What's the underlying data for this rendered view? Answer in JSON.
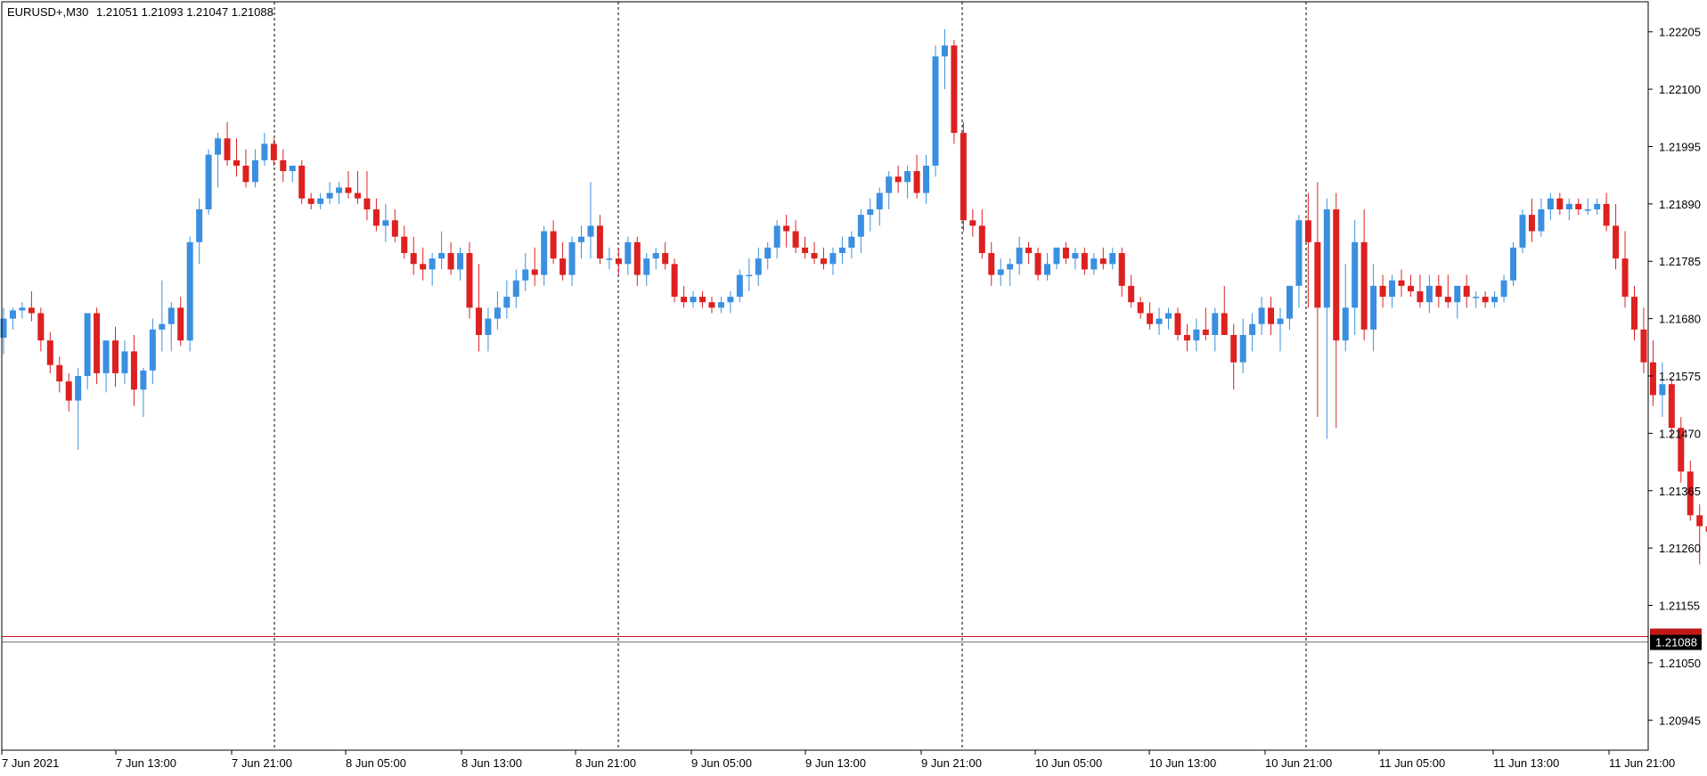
{
  "header": {
    "symbol": "EURUSD+,M30",
    "ohlc": "1.21051 1.21093 1.21047 1.21088"
  },
  "colors": {
    "bull": "#3a8fe0",
    "bear": "#dd2020",
    "grid": "#000000",
    "background": "#ffffff",
    "bid_line": "#707070",
    "ask_line": "#c01818",
    "price_label_bg": "#000000",
    "ask_label_bg": "#c01818"
  },
  "chart_data": {
    "type": "candlestick",
    "symbol": "EURUSD+",
    "timeframe": "M30",
    "ylim": [
      1.2089,
      1.2226
    ],
    "y_ticks": [
      "1.22205",
      "1.22100",
      "1.21995",
      "1.21890",
      "1.21785",
      "1.21680",
      "1.21575",
      "1.21470",
      "1.21365",
      "1.21260",
      "1.21155",
      "1.21050",
      "1.20945"
    ],
    "x_ticks": [
      "7 Jun 2021",
      "7 Jun 13:00",
      "7 Jun 21:00",
      "8 Jun 05:00",
      "8 Jun 13:00",
      "8 Jun 21:00",
      "9 Jun 05:00",
      "9 Jun 13:00",
      "9 Jun 21:00",
      "10 Jun 05:00",
      "10 Jun 13:00",
      "10 Jun 21:00",
      "11 Jun 05:00",
      "11 Jun 13:00",
      "11 Jun 21:00"
    ],
    "day_separators": [
      "7 Jun 21:00",
      "8 Jun 21:00",
      "9 Jun 21:00",
      "10 Jun 21:00"
    ],
    "current_price": "1.21088",
    "ask_price": 1.21098,
    "grid": false,
    "candles": [
      [
        1.21645,
        1.217,
        1.21615,
        1.2168
      ],
      [
        1.2168,
        1.217,
        1.2166,
        1.21695
      ],
      [
        1.21695,
        1.2171,
        1.2168,
        1.217
      ],
      [
        1.217,
        1.2173,
        1.21675,
        1.2169
      ],
      [
        1.2169,
        1.217,
        1.2162,
        1.2164
      ],
      [
        1.2164,
        1.21655,
        1.2158,
        1.21595
      ],
      [
        1.21595,
        1.2161,
        1.21545,
        1.21565
      ],
      [
        1.21565,
        1.2158,
        1.2151,
        1.2153
      ],
      [
        1.2153,
        1.2159,
        1.2144,
        1.21575
      ],
      [
        1.21575,
        1.2169,
        1.2155,
        1.2169
      ],
      [
        1.2169,
        1.217,
        1.2156,
        1.2158
      ],
      [
        1.2158,
        1.2164,
        1.21545,
        1.2164
      ],
      [
        1.2164,
        1.21665,
        1.21555,
        1.2158
      ],
      [
        1.2158,
        1.2164,
        1.2156,
        1.2162
      ],
      [
        1.2162,
        1.2165,
        1.2152,
        1.2155
      ],
      [
        1.2155,
        1.2159,
        1.215,
        1.21585
      ],
      [
        1.21585,
        1.2168,
        1.2156,
        1.2166
      ],
      [
        1.2166,
        1.2175,
        1.2162,
        1.2167
      ],
      [
        1.2167,
        1.2171,
        1.2162,
        1.217
      ],
      [
        1.217,
        1.2172,
        1.2163,
        1.2164
      ],
      [
        1.2164,
        1.2183,
        1.2162,
        1.2182
      ],
      [
        1.2182,
        1.219,
        1.2178,
        1.2188
      ],
      [
        1.2188,
        1.2199,
        1.2187,
        1.2198
      ],
      [
        1.2198,
        1.2202,
        1.2192,
        1.2201
      ],
      [
        1.2201,
        1.2204,
        1.2196,
        1.2197
      ],
      [
        1.2197,
        1.2201,
        1.2194,
        1.2196
      ],
      [
        1.2196,
        1.2199,
        1.2192,
        1.2193
      ],
      [
        1.2193,
        1.2199,
        1.2192,
        1.2197
      ],
      [
        1.2197,
        1.2202,
        1.2196,
        1.22
      ],
      [
        1.22,
        1.2201,
        1.2196,
        1.2197
      ],
      [
        1.2197,
        1.2199,
        1.2193,
        1.2195
      ],
      [
        1.2195,
        1.2196,
        1.2193,
        1.2196
      ],
      [
        1.2196,
        1.2197,
        1.2189,
        1.219
      ],
      [
        1.219,
        1.2191,
        1.2188,
        1.2189
      ],
      [
        1.2189,
        1.2191,
        1.2188,
        1.219
      ],
      [
        1.219,
        1.2193,
        1.2189,
        1.2191
      ],
      [
        1.2191,
        1.2193,
        1.2189,
        1.2192
      ],
      [
        1.2192,
        1.2195,
        1.219,
        1.2191
      ],
      [
        1.2191,
        1.2195,
        1.2189,
        1.219
      ],
      [
        1.219,
        1.2195,
        1.2186,
        1.2188
      ],
      [
        1.2188,
        1.219,
        1.2184,
        1.2185
      ],
      [
        1.2185,
        1.2189,
        1.2182,
        1.2186
      ],
      [
        1.2186,
        1.2188,
        1.2182,
        1.2183
      ],
      [
        1.2183,
        1.2185,
        1.2179,
        1.218
      ],
      [
        1.218,
        1.2183,
        1.2176,
        1.2178
      ],
      [
        1.2178,
        1.2181,
        1.2175,
        1.2177
      ],
      [
        1.2177,
        1.218,
        1.2174,
        1.2179
      ],
      [
        1.2179,
        1.2184,
        1.2177,
        1.218
      ],
      [
        1.218,
        1.2182,
        1.2176,
        1.2177
      ],
      [
        1.2177,
        1.2181,
        1.2175,
        1.218
      ],
      [
        1.218,
        1.2182,
        1.2168,
        1.217
      ],
      [
        1.217,
        1.2178,
        1.2162,
        1.2165
      ],
      [
        1.2165,
        1.217,
        1.2162,
        1.2168
      ],
      [
        1.2168,
        1.2173,
        1.2166,
        1.217
      ],
      [
        1.217,
        1.2175,
        1.2168,
        1.2172
      ],
      [
        1.2172,
        1.2177,
        1.217,
        1.2175
      ],
      [
        1.2175,
        1.218,
        1.2173,
        1.2177
      ],
      [
        1.2177,
        1.2181,
        1.2174,
        1.2176
      ],
      [
        1.2176,
        1.2185,
        1.2174,
        1.2184
      ],
      [
        1.2184,
        1.2186,
        1.2178,
        1.2179
      ],
      [
        1.2179,
        1.2182,
        1.2175,
        1.2176
      ],
      [
        1.2176,
        1.2183,
        1.2174,
        1.2182
      ],
      [
        1.2182,
        1.2185,
        1.2179,
        1.2183
      ],
      [
        1.2183,
        1.2193,
        1.2179,
        1.2185
      ],
      [
        1.2185,
        1.2187,
        1.2178,
        1.2179
      ],
      [
        1.2179,
        1.2181,
        1.2177,
        1.2179
      ],
      [
        1.2179,
        1.2181,
        1.2176,
        1.2178
      ],
      [
        1.2178,
        1.2183,
        1.2176,
        1.2182
      ],
      [
        1.2182,
        1.2183,
        1.2174,
        1.2176
      ],
      [
        1.2176,
        1.218,
        1.2174,
        1.2179
      ],
      [
        1.2179,
        1.2181,
        1.2177,
        1.218
      ],
      [
        1.218,
        1.2182,
        1.2177,
        1.2178
      ],
      [
        1.2178,
        1.2179,
        1.2171,
        1.2172
      ],
      [
        1.2172,
        1.2174,
        1.217,
        1.2171
      ],
      [
        1.2171,
        1.2173,
        1.217,
        1.2172
      ],
      [
        1.2172,
        1.2173,
        1.217,
        1.2171
      ],
      [
        1.2171,
        1.2172,
        1.2169,
        1.217
      ],
      [
        1.217,
        1.2172,
        1.2169,
        1.2171
      ],
      [
        1.2171,
        1.2173,
        1.2169,
        1.2172
      ],
      [
        1.2172,
        1.2177,
        1.2171,
        1.2176
      ],
      [
        1.2176,
        1.2179,
        1.2173,
        1.2176
      ],
      [
        1.2176,
        1.2181,
        1.2174,
        1.2179
      ],
      [
        1.2179,
        1.2182,
        1.2177,
        1.2181
      ],
      [
        1.2181,
        1.2186,
        1.2179,
        1.2185
      ],
      [
        1.2185,
        1.2187,
        1.2181,
        1.2184
      ],
      [
        1.2184,
        1.2186,
        1.218,
        1.2181
      ],
      [
        1.2181,
        1.2183,
        1.2179,
        1.218
      ],
      [
        1.218,
        1.2182,
        1.2178,
        1.2179
      ],
      [
        1.2179,
        1.2181,
        1.2177,
        1.2178
      ],
      [
        1.2178,
        1.2181,
        1.2176,
        1.218
      ],
      [
        1.218,
        1.2183,
        1.2178,
        1.2181
      ],
      [
        1.2181,
        1.2184,
        1.2179,
        1.2183
      ],
      [
        1.2183,
        1.2188,
        1.218,
        1.2187
      ],
      [
        1.2187,
        1.219,
        1.2184,
        1.2188
      ],
      [
        1.2188,
        1.2192,
        1.2185,
        1.2191
      ],
      [
        1.2191,
        1.2195,
        1.2188,
        1.2194
      ],
      [
        1.2194,
        1.2196,
        1.2191,
        1.2193
      ],
      [
        1.2193,
        1.2196,
        1.219,
        1.2195
      ],
      [
        1.2195,
        1.2198,
        1.219,
        1.2191
      ],
      [
        1.2191,
        1.2198,
        1.2189,
        1.2196
      ],
      [
        1.2196,
        1.2218,
        1.2194,
        1.2216
      ],
      [
        1.2216,
        1.2221,
        1.221,
        1.2218
      ],
      [
        1.2218,
        1.2219,
        1.22,
        1.2202
      ],
      [
        1.2202,
        1.2204,
        1.2184,
        1.2186
      ],
      [
        1.2186,
        1.2188,
        1.2183,
        1.2185
      ],
      [
        1.2185,
        1.2188,
        1.2179,
        1.218
      ],
      [
        1.218,
        1.2182,
        1.2174,
        1.2176
      ],
      [
        1.2176,
        1.2179,
        1.2174,
        1.2177
      ],
      [
        1.2177,
        1.2179,
        1.2174,
        1.2178
      ],
      [
        1.2178,
        1.2183,
        1.2176,
        1.2181
      ],
      [
        1.2181,
        1.2182,
        1.2178,
        1.218
      ],
      [
        1.218,
        1.2181,
        1.2175,
        1.2176
      ],
      [
        1.2176,
        1.218,
        1.2175,
        1.2178
      ],
      [
        1.2178,
        1.2181,
        1.2177,
        1.2181
      ],
      [
        1.2181,
        1.2182,
        1.2178,
        1.2179
      ],
      [
        1.2179,
        1.2181,
        1.2177,
        1.218
      ],
      [
        1.218,
        1.2181,
        1.2176,
        1.2177
      ],
      [
        1.2177,
        1.218,
        1.2176,
        1.2179
      ],
      [
        1.2179,
        1.2181,
        1.2177,
        1.2178
      ],
      [
        1.2178,
        1.2181,
        1.2177,
        1.218
      ],
      [
        1.218,
        1.2181,
        1.2172,
        1.2174
      ],
      [
        1.2174,
        1.2176,
        1.217,
        1.2171
      ],
      [
        1.2171,
        1.2172,
        1.2168,
        1.2169
      ],
      [
        1.2169,
        1.2171,
        1.2166,
        1.2167
      ],
      [
        1.2167,
        1.217,
        1.2165,
        1.2168
      ],
      [
        1.2168,
        1.217,
        1.2166,
        1.2169
      ],
      [
        1.2169,
        1.217,
        1.2164,
        1.2165
      ],
      [
        1.2165,
        1.2167,
        1.2162,
        1.2164
      ],
      [
        1.2164,
        1.2168,
        1.2162,
        1.2166
      ],
      [
        1.2166,
        1.217,
        1.2164,
        1.2165
      ],
      [
        1.2165,
        1.217,
        1.2162,
        1.2169
      ],
      [
        1.2169,
        1.2174,
        1.2165,
        1.2165
      ],
      [
        1.2165,
        1.2167,
        1.2155,
        1.216
      ],
      [
        1.216,
        1.2168,
        1.2158,
        1.2165
      ],
      [
        1.2165,
        1.2169,
        1.2162,
        1.2167
      ],
      [
        1.2167,
        1.2172,
        1.2165,
        1.217
      ],
      [
        1.217,
        1.2172,
        1.2165,
        1.2167
      ],
      [
        1.2167,
        1.217,
        1.2162,
        1.2168
      ],
      [
        1.2168,
        1.2174,
        1.2166,
        1.2174
      ],
      [
        1.2174,
        1.2187,
        1.217,
        1.2186
      ],
      [
        1.2186,
        1.2191,
        1.217,
        1.2182
      ],
      [
        1.2182,
        1.2193,
        1.215,
        1.217
      ],
      [
        1.217,
        1.219,
        1.2146,
        1.2188
      ],
      [
        1.2188,
        1.2191,
        1.2148,
        1.2164
      ],
      [
        1.2164,
        1.2178,
        1.2162,
        1.217
      ],
      [
        1.217,
        1.2186,
        1.2165,
        1.2182
      ],
      [
        1.2182,
        1.2188,
        1.2164,
        1.2166
      ],
      [
        1.2166,
        1.2178,
        1.2162,
        1.2174
      ],
      [
        1.2174,
        1.2176,
        1.217,
        1.2172
      ],
      [
        1.2172,
        1.2176,
        1.217,
        1.2175
      ],
      [
        1.2175,
        1.2177,
        1.2172,
        1.2174
      ],
      [
        1.2174,
        1.2176,
        1.2172,
        1.2173
      ],
      [
        1.2173,
        1.2176,
        1.217,
        1.2171
      ],
      [
        1.2171,
        1.2176,
        1.2169,
        1.2174
      ],
      [
        1.2174,
        1.2176,
        1.217,
        1.2172
      ],
      [
        1.2172,
        1.2176,
        1.217,
        1.2171
      ],
      [
        1.2171,
        1.2173,
        1.2168,
        1.2174
      ],
      [
        1.2174,
        1.2176,
        1.217,
        1.2172
      ],
      [
        1.2172,
        1.2173,
        1.217,
        1.2172
      ],
      [
        1.2172,
        1.2173,
        1.217,
        1.2171
      ],
      [
        1.2171,
        1.2173,
        1.217,
        1.2172
      ],
      [
        1.2172,
        1.2176,
        1.2171,
        1.2175
      ],
      [
        1.2175,
        1.2182,
        1.2174,
        1.2181
      ],
      [
        1.2181,
        1.2188,
        1.218,
        1.2187
      ],
      [
        1.2187,
        1.219,
        1.2182,
        1.2184
      ],
      [
        1.2184,
        1.219,
        1.2183,
        1.2188
      ],
      [
        1.2188,
        1.2191,
        1.2186,
        1.219
      ],
      [
        1.219,
        1.2191,
        1.2187,
        1.2188
      ],
      [
        1.2188,
        1.219,
        1.2186,
        1.2189
      ],
      [
        1.2189,
        1.219,
        1.2187,
        1.2188
      ],
      [
        1.2188,
        1.219,
        1.2187,
        1.2188
      ],
      [
        1.2188,
        1.219,
        1.2187,
        1.2189
      ],
      [
        1.2189,
        1.2191,
        1.2184,
        1.2185
      ],
      [
        1.2185,
        1.2189,
        1.2177,
        1.2179
      ],
      [
        1.2179,
        1.2184,
        1.217,
        1.2172
      ],
      [
        1.2172,
        1.2174,
        1.2164,
        1.2166
      ],
      [
        1.2166,
        1.217,
        1.2158,
        1.216
      ],
      [
        1.216,
        1.2164,
        1.2152,
        1.2154
      ],
      [
        1.2154,
        1.216,
        1.215,
        1.2156
      ],
      [
        1.2156,
        1.2157,
        1.2146,
        1.2148
      ],
      [
        1.2148,
        1.215,
        1.2138,
        1.214
      ],
      [
        1.214,
        1.2142,
        1.2131,
        1.2132
      ],
      [
        1.2132,
        1.2134,
        1.2123,
        1.213
      ],
      [
        1.213,
        1.2133,
        1.2126,
        1.2129
      ],
      [
        1.2129,
        1.2132,
        1.212,
        1.2121
      ],
      [
        1.2121,
        1.2126,
        1.211,
        1.2112
      ],
      [
        1.2112,
        1.2115,
        1.2104,
        1.2107
      ],
      [
        1.2107,
        1.2112,
        1.2093,
        1.2104
      ],
      [
        1.2104,
        1.2107,
        1.2097,
        1.2098
      ],
      [
        1.2098,
        1.2101,
        1.2096,
        1.2098
      ],
      [
        1.2098,
        1.2099,
        1.2093,
        1.2096
      ],
      [
        1.2096,
        1.2098,
        1.2093,
        1.2095
      ],
      [
        1.2095,
        1.2098,
        1.2092,
        1.2097
      ],
      [
        1.2097,
        1.2101,
        1.2096,
        1.21
      ],
      [
        1.21,
        1.2102,
        1.2098,
        1.2101
      ],
      [
        1.2101,
        1.2106,
        1.21,
        1.2105
      ],
      [
        1.21051,
        1.21093,
        1.21047,
        1.21088
      ]
    ]
  }
}
